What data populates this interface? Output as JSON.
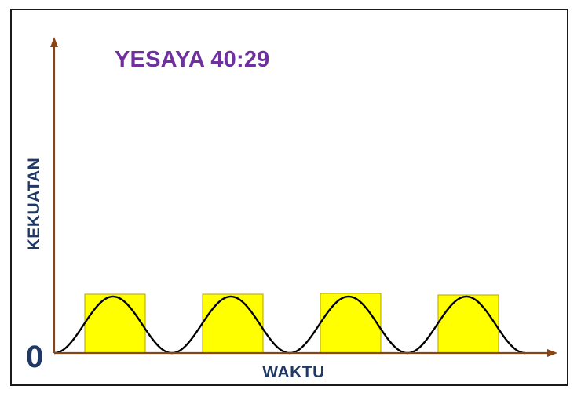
{
  "title": "YESAYA 40:29",
  "y_axis_label": "KEKUATAN",
  "x_axis_label": "WAKTU",
  "origin_label": "0",
  "colors": {
    "title": "#7030a0",
    "axis_label": "#1f3864",
    "axis": "#8b4513",
    "block_fill": "#ffff00",
    "block_stroke": "#b5a000",
    "wave": "#000000",
    "frame": "#1a1a1a"
  },
  "diagram": {
    "block_count": 4,
    "wave_cycles": 4,
    "shape": "raised-cosine waves each framed by a yellow rectangle"
  }
}
